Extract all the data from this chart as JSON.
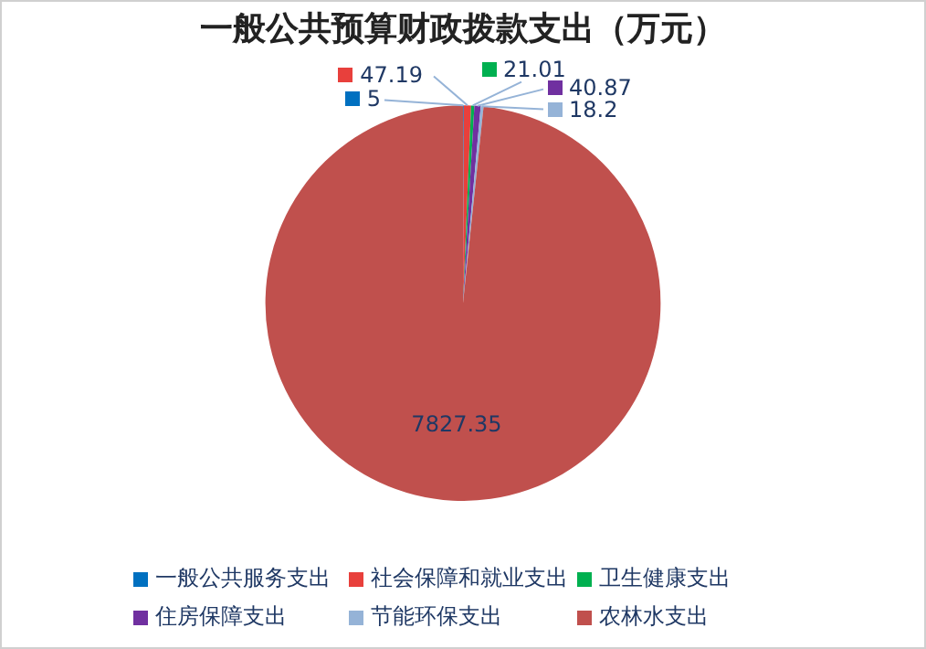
{
  "chart_data": {
    "type": "pie",
    "title": "一般公共预算财政拨款支出（万元）",
    "categories": [
      "一般公共服务支出",
      "社会保障和就业支出",
      "卫生健康支出",
      "住房保障支出",
      "节能环保支出",
      "农林水支出"
    ],
    "values": [
      5,
      47.19,
      21.01,
      40.87,
      18.2,
      7827.35
    ],
    "colors": [
      "#0070c0",
      "#e8403c",
      "#00b050",
      "#7030a0",
      "#95b3d7",
      "#c0504d"
    ],
    "data_labels": true,
    "legend": "bottom"
  }
}
